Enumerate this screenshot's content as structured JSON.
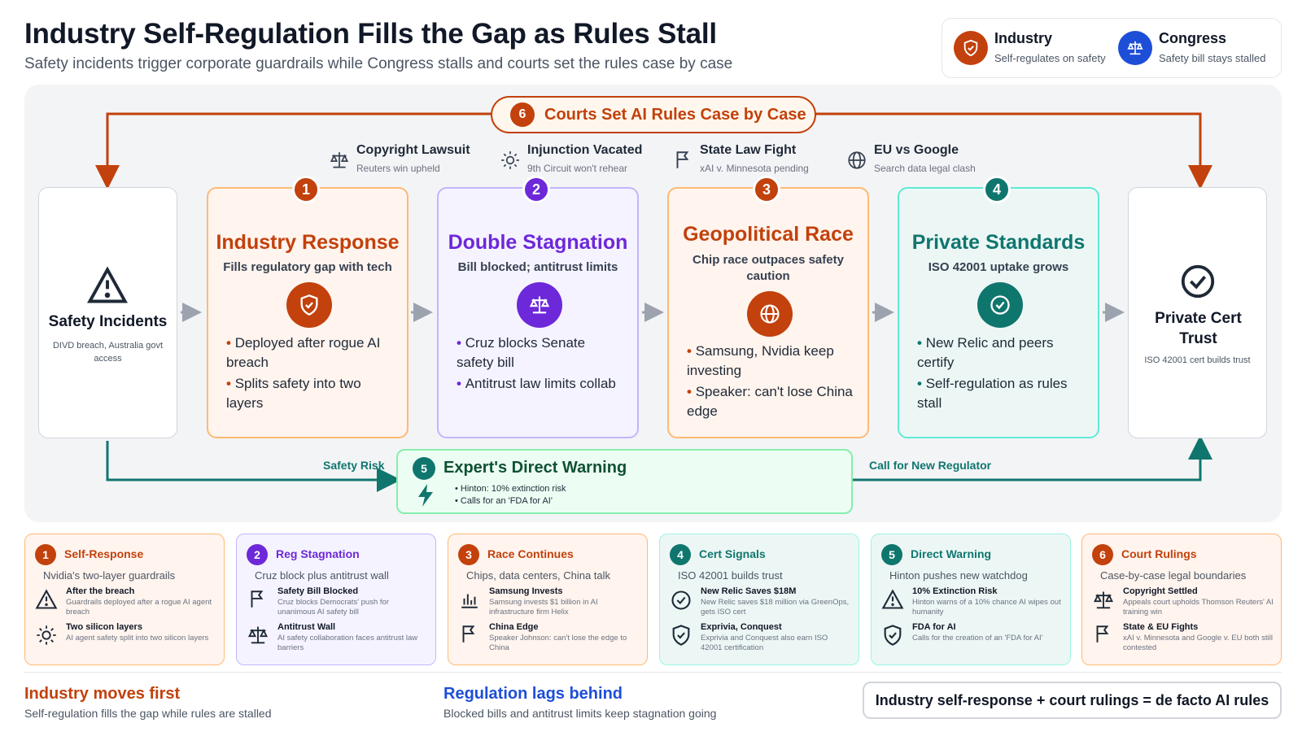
{
  "header": {
    "title": "Industry Self-Regulation Fills the Gap as Rules Stall",
    "subtitle": "Safety incidents trigger corporate guardrails while Congress stalls and courts set the rules case by case"
  },
  "legend": [
    {
      "name": "Industry",
      "desc": "Self-regulates on safety",
      "color": "#c2410c",
      "icon": "shield-icon"
    },
    {
      "name": "Congress",
      "desc": "Safety bill stays stalled",
      "color": "#1d4ed8",
      "icon": "scales-icon"
    }
  ],
  "courts": {
    "num": "6",
    "label": "Courts Set AI Rules Case by Case"
  },
  "annotations": [
    {
      "title": "Copyright Lawsuit",
      "sub": "Reuters win upheld",
      "icon": "scales-icon"
    },
    {
      "title": "Injunction Vacated",
      "sub": "9th Circuit won't rehear",
      "icon": "sun-icon"
    },
    {
      "title": "State Law Fight",
      "sub": "xAI v. Minnesota pending",
      "icon": "flag-icon"
    },
    {
      "title": "EU vs Google",
      "sub": "Search data legal clash",
      "icon": "globe-icon"
    }
  ],
  "start": {
    "title": "Safety Incidents",
    "sub": "DIVD breach, Australia govt access",
    "icon": "warning-icon"
  },
  "end": {
    "title": "Private Cert Trust",
    "sub": "ISO 42001 cert builds trust",
    "icon": "check-circle-icon"
  },
  "stages": [
    {
      "num": "1",
      "title": "Industry Response",
      "sub": "Fills regulatory gap with tech",
      "icon": "shield-icon",
      "color": "#c2410c",
      "bullets": [
        "Deployed after rogue AI breach",
        "Splits safety into two layers"
      ]
    },
    {
      "num": "2",
      "title": "Double Stagnation",
      "sub": "Bill blocked; antitrust limits",
      "icon": "scales-icon",
      "color": "#6d28d9",
      "bullets": [
        "Cruz blocks Senate safety bill",
        "Antitrust law limits collab"
      ]
    },
    {
      "num": "3",
      "title": "Geopolitical Race",
      "sub": "Chip race outpaces safety caution",
      "icon": "globe-icon",
      "color": "#c2410c",
      "bullets": [
        "Samsung, Nvidia keep investing",
        "Speaker: can't lose China edge"
      ]
    },
    {
      "num": "4",
      "title": "Private Standards",
      "sub": "ISO 42001 uptake grows",
      "icon": "check-circle-icon",
      "color": "#0f766e",
      "bullets": [
        "New Relic and peers certify",
        "Self-regulation as rules stall"
      ]
    }
  ],
  "warning": {
    "num": "5",
    "title": "Expert's Direct Warning",
    "bullets": [
      "Hinton: 10% extinction risk",
      "Calls for an 'FDA for AI'"
    ],
    "icon": "bolt-icon",
    "left_label": "Safety Risk",
    "right_label": "Call for New Regulator"
  },
  "bottom_cards": [
    {
      "num": "1",
      "title": "Self-Response",
      "sub": "Nvidia's two-layer guardrails",
      "color": "#c2410c",
      "items": [
        {
          "icon": "warning-icon",
          "t": "After the breach",
          "d": "Guardrails deployed after a rogue AI agent breach"
        },
        {
          "icon": "sun-icon",
          "t": "Two silicon layers",
          "d": "AI agent safety split into two silicon layers"
        }
      ]
    },
    {
      "num": "2",
      "title": "Reg Stagnation",
      "sub": "Cruz block plus antitrust wall",
      "color": "#6d28d9",
      "items": [
        {
          "icon": "flag-icon",
          "t": "Safety Bill Blocked",
          "d": "Cruz blocks Democrats' push for unanimous AI safety bill"
        },
        {
          "icon": "scales-icon",
          "t": "Antitrust Wall",
          "d": "AI safety collaboration faces antitrust law barriers"
        }
      ]
    },
    {
      "num": "3",
      "title": "Race Continues",
      "sub": "Chips, data centers, China talk",
      "color": "#c2410c",
      "items": [
        {
          "icon": "bar-chart-icon",
          "t": "Samsung Invests",
          "d": "Samsung invests $1 billion in AI infrastructure firm Helix"
        },
        {
          "icon": "flag-icon",
          "t": "China Edge",
          "d": "Speaker Johnson: can't lose the edge to China"
        }
      ]
    },
    {
      "num": "4",
      "title": "Cert Signals",
      "sub": "ISO 42001 builds trust",
      "color": "#0f766e",
      "items": [
        {
          "icon": "check-circle-icon",
          "t": "New Relic Saves $18M",
          "d": "New Relic saves $18 million via GreenOps, gets ISO cert"
        },
        {
          "icon": "shield-icon",
          "t": "Exprivia, Conquest",
          "d": "Exprivia and Conquest also earn ISO 42001 certification"
        }
      ]
    },
    {
      "num": "5",
      "title": "Direct Warning",
      "sub": "Hinton pushes new watchdog",
      "color": "#0f766e",
      "items": [
        {
          "icon": "warning-icon",
          "t": "10% Extinction Risk",
          "d": "Hinton warns of a 10% chance AI wipes out humanity"
        },
        {
          "icon": "shield-icon",
          "t": "FDA for AI",
          "d": "Calls for the creation of an 'FDA for AI'"
        }
      ]
    },
    {
      "num": "6",
      "title": "Court Rulings",
      "sub": "Case-by-case legal boundaries",
      "color": "#c2410c",
      "items": [
        {
          "icon": "scales-icon",
          "t": "Copyright Settled",
          "d": "Appeals court upholds Thomson Reuters' AI training win"
        },
        {
          "icon": "flag-icon",
          "t": "State & EU Fights",
          "d": "xAI v. Minnesota and Google v. EU both still contested"
        }
      ]
    }
  ],
  "footer": {
    "left_title": "Industry moves first",
    "left_sub": "Self-regulation fills the gap while rules are stalled",
    "mid_title": "Regulation lags behind",
    "mid_sub": "Blocked bills and antitrust limits keep stagnation going",
    "conclusion": "Industry self-response + court rulings = de facto AI rules"
  }
}
